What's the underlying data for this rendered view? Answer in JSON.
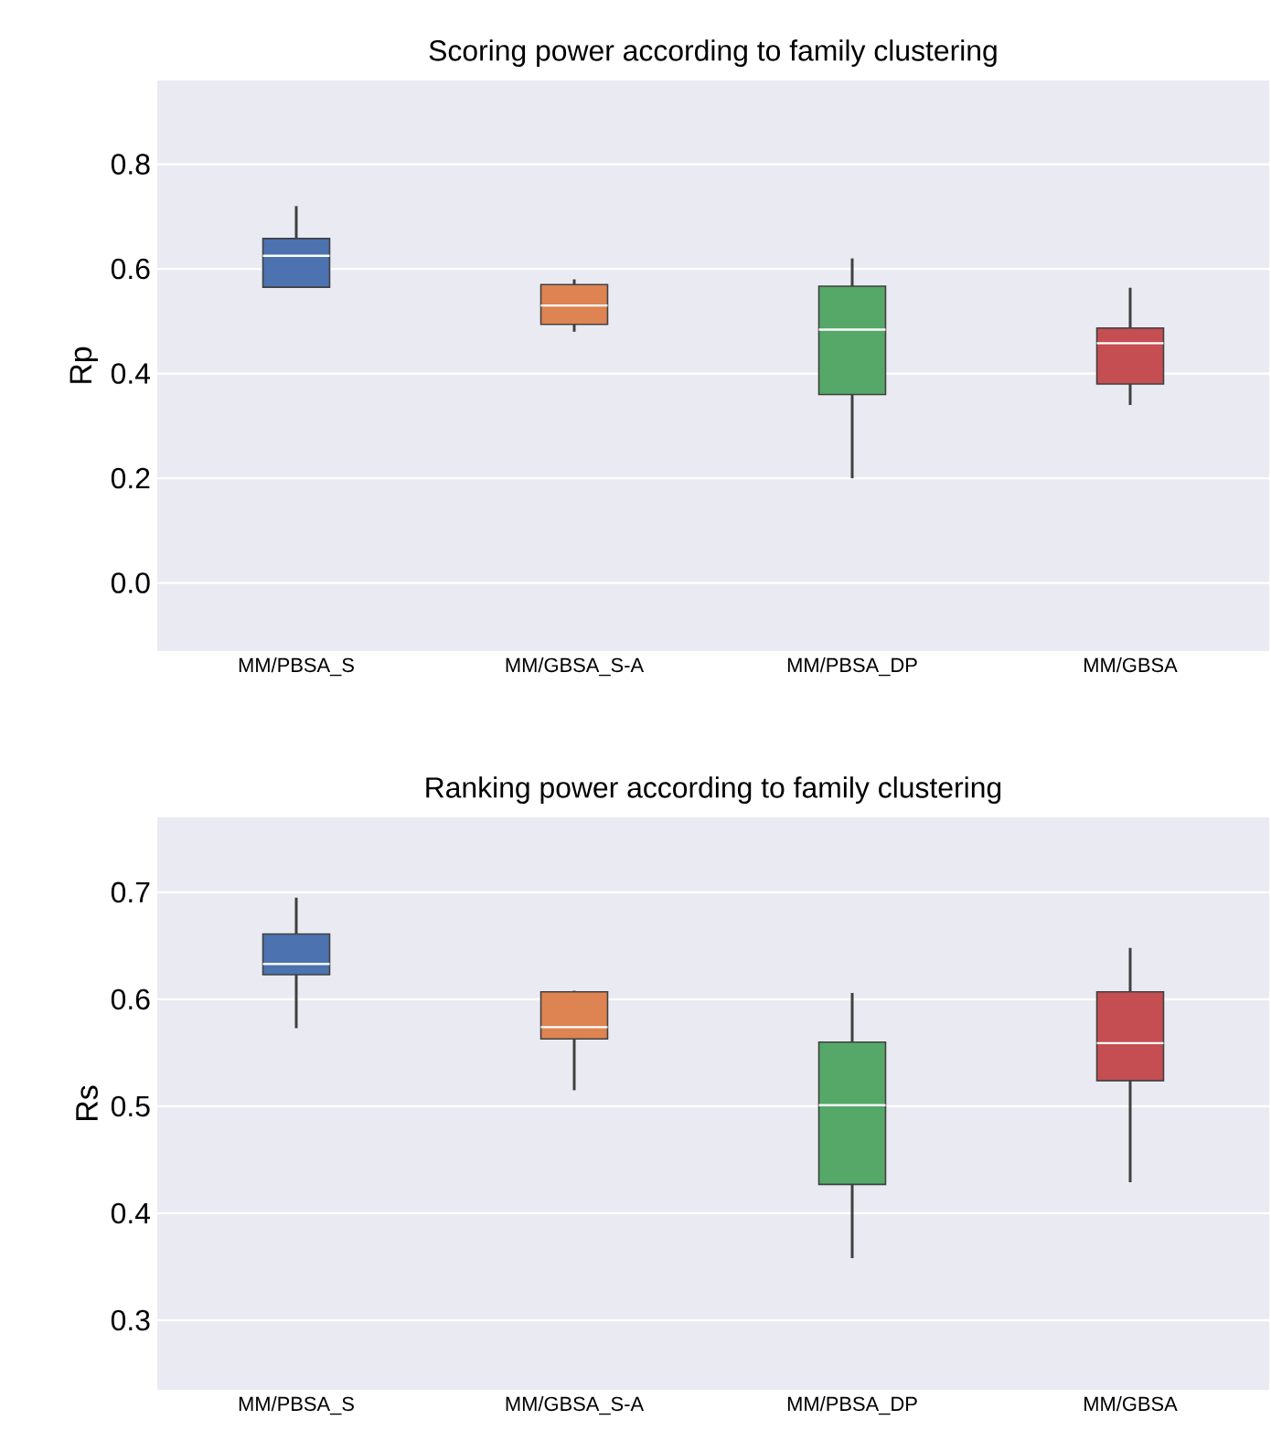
{
  "chart_data": [
    {
      "type": "box",
      "title": "Scoring power according to family clustering",
      "ylabel": "Rp",
      "categories": [
        "MM/PBSA_S",
        "MM/GBSA_S-A",
        "MM/PBSA_DP",
        "MM/GBSA"
      ],
      "colors": [
        "#4c72b0",
        "#dd8452",
        "#55a868",
        "#c44e52"
      ],
      "boxes": [
        {
          "low": 0.565,
          "q1": 0.565,
          "median": 0.625,
          "q3": 0.658,
          "high": 0.72
        },
        {
          "low": 0.48,
          "q1": 0.494,
          "median": 0.53,
          "q3": 0.57,
          "high": 0.58
        },
        {
          "low": 0.2,
          "q1": 0.36,
          "median": 0.484,
          "q3": 0.567,
          "high": 0.62
        },
        {
          "low": 0.34,
          "q1": 0.38,
          "median": 0.458,
          "q3": 0.487,
          "high": 0.564
        }
      ],
      "ylim": [
        -0.13,
        0.96
      ],
      "yticks": [
        {
          "value": 0,
          "label": "0.0"
        },
        0.2,
        0.4,
        0.6,
        0.8
      ],
      "grid": "y"
    },
    {
      "type": "box",
      "title": "Ranking power according to family clustering",
      "ylabel": "Rs",
      "categories": [
        "MM/PBSA_S",
        "MM/GBSA_S-A",
        "MM/PBSA_DP",
        "MM/GBSA"
      ],
      "colors": [
        "#4c72b0",
        "#dd8452",
        "#55a868",
        "#c44e52"
      ],
      "boxes": [
        {
          "low": 0.573,
          "q1": 0.623,
          "median": 0.633,
          "q3": 0.661,
          "high": 0.695
        },
        {
          "low": 0.515,
          "q1": 0.563,
          "median": 0.574,
          "q3": 0.607,
          "high": 0.608
        },
        {
          "low": 0.358,
          "q1": 0.427,
          "median": 0.501,
          "q3": 0.56,
          "high": 0.606
        },
        {
          "low": 0.429,
          "q1": 0.524,
          "median": 0.559,
          "q3": 0.607,
          "high": 0.648
        }
      ],
      "ylim": [
        0.235,
        0.77
      ],
      "yticks": [
        0.3,
        0.4,
        0.5,
        0.6,
        0.7
      ],
      "grid": "y"
    }
  ]
}
